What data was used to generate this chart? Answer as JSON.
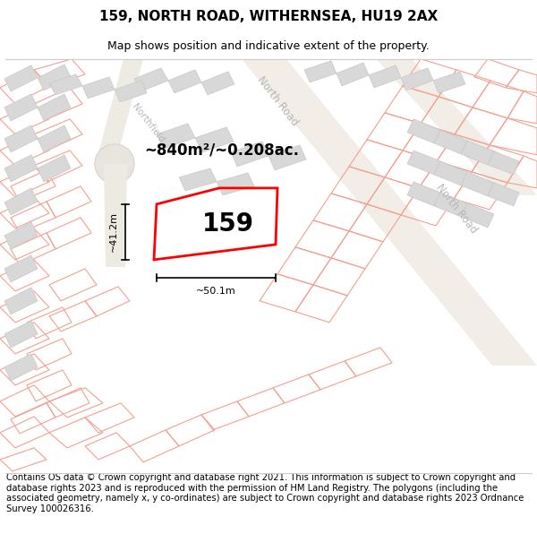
{
  "title": "159, NORTH ROAD, WITHERNSEA, HU19 2AX",
  "subtitle": "Map shows position and indicative extent of the property.",
  "footer": "Contains OS data © Crown copyright and database right 2021. This information is subject to Crown copyright and database rights 2023 and is reproduced with the permission of HM Land Registry. The polygons (including the associated geometry, namely x, y co-ordinates) are subject to Crown copyright and database rights 2023 Ordnance Survey 100026316.",
  "property_number": "159",
  "area_text": "~840m²/~0.208ac.",
  "dim_width": "~50.1m",
  "dim_height": "~41.2m",
  "bg_color": "#ffffff",
  "plot_outline_color": "#f4a090",
  "building_fill": "#d8d8d8",
  "building_edge": "#c8c8c8",
  "highlight_color": "#ff0000",
  "road_label_color": "#b0b0b0",
  "title_fontsize": 11,
  "subtitle_fontsize": 9,
  "footer_fontsize": 7.2
}
